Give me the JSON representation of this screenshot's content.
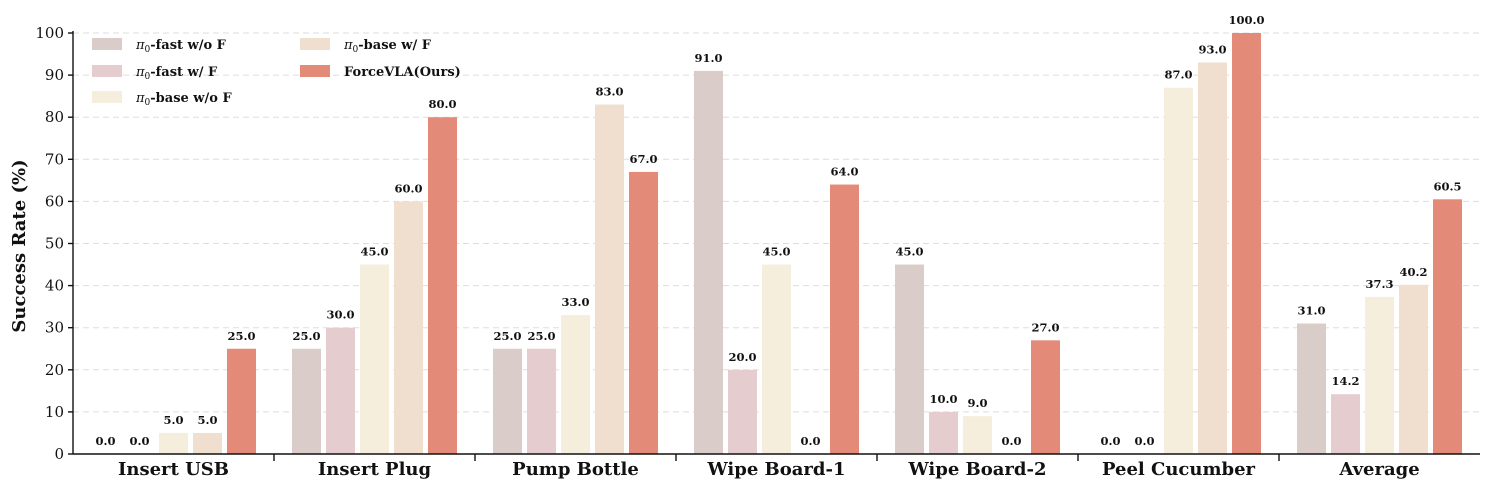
{
  "chart_data": {
    "type": "bar",
    "title": "",
    "xlabel": "",
    "ylabel": "Success Rate (%)",
    "ylim": [
      0,
      100
    ],
    "yticks": [
      0,
      10,
      20,
      30,
      40,
      50,
      60,
      70,
      80,
      90,
      100
    ],
    "grid": true,
    "legend_position": "top-left",
    "categories": [
      "Insert USB",
      "Insert Plug",
      "Pump Bottle",
      "Wipe Board-1",
      "Wipe Board-2",
      "Peel Cucumber",
      "Average"
    ],
    "series": [
      {
        "name": "π0-fast w/o F",
        "color": "#d9ccc9",
        "values": [
          0.0,
          25.0,
          25.0,
          91.0,
          45.0,
          0.0,
          31.0
        ]
      },
      {
        "name": "π0-fast w/ F",
        "color": "#e4cccf",
        "values": [
          0.0,
          30.0,
          25.0,
          20.0,
          10.0,
          0.0,
          14.2
        ]
      },
      {
        "name": "π0-base w/o F",
        "color": "#f5eedd",
        "values": [
          5.0,
          45.0,
          33.0,
          45.0,
          9.0,
          87.0,
          37.3
        ]
      },
      {
        "name": "π0-base w/ F",
        "color": "#f0dfcf",
        "values": [
          5.0,
          60.0,
          83.0,
          0.0,
          0.0,
          93.0,
          40.2
        ]
      },
      {
        "name": "ForceVLA(Ours)",
        "color": "#e48a78",
        "values": [
          25.0,
          80.0,
          67.0,
          64.0,
          27.0,
          100.0,
          60.5
        ]
      }
    ]
  }
}
